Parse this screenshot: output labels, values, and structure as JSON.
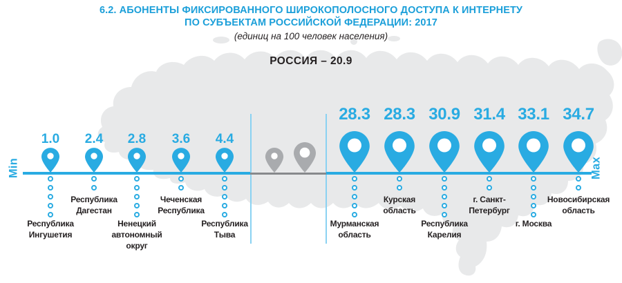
{
  "header": {
    "title_line1": "6.2. АБОНЕНТЫ ФИКСИРОВАННОГО ШИРОКОПОЛОСНОГО ДОСТУПА К ИНТЕРНЕТУ",
    "title_line2": "ПО СУБЪЕКТАМ РОССИЙСКОЙ ФЕДЕРАЦИИ: 2017",
    "subtitle": "(единиц на 100 человек населения)",
    "russia_total": "РОССИЯ – 20.9"
  },
  "axis": {
    "min_label": "Min",
    "max_label": "Max"
  },
  "colors": {
    "accent_blue": "#29abe2",
    "title_blue": "#1b9fd9",
    "separator_blue": "#8ad2f2",
    "gray_pin": "#a9abae",
    "axis_gray": "#87898c",
    "map_gray": "#e8e9ea",
    "text_dark": "#231f20"
  },
  "chart_data": {
    "type": "pictorial-min-max-markers",
    "title": "Абоненты фиксированного широкополосного доступа к интернету по субъектам Российской Федерации: 2017",
    "unit": "единиц на 100 человек населения",
    "russia_value": 20.9,
    "axis_note": "min regions on left of line, max regions on right; 2 unlabeled gray intermediate markers in the middle",
    "unlabeled_intermediate_markers": 2,
    "min_group": [
      {
        "value": "1.0",
        "region": "Республика Ингушетия",
        "label": "Республика\nИнгушетия"
      },
      {
        "value": "2.4",
        "region": "Республика Дагестан",
        "label": "Республика\nДагестан"
      },
      {
        "value": "2.8",
        "region": "Ненецкий автономный округ",
        "label": "Ненецкий\nавтономный\nокруг"
      },
      {
        "value": "3.6",
        "region": "Чеченская Республика",
        "label": "Чеченская\nРеспублика"
      },
      {
        "value": "4.4",
        "region": "Республика Тыва",
        "label": "Республика\nТыва"
      }
    ],
    "max_group": [
      {
        "value": "28.3",
        "region": "Мурманская область",
        "label": "Мурманская\nобласть"
      },
      {
        "value": "28.3",
        "region": "Курская область",
        "label": "Курская\nобласть"
      },
      {
        "value": "30.9",
        "region": "Республика Карелия",
        "label": "Республика\nКарелия"
      },
      {
        "value": "31.4",
        "region": "г. Санкт-Петербург",
        "label": "г. Санкт-\nПетербург"
      },
      {
        "value": "33.1",
        "region": "г. Москва",
        "label": "г. Москва"
      },
      {
        "value": "34.7",
        "region": "Новосибирская область",
        "label": "Новосибирская\nобласть"
      }
    ]
  }
}
